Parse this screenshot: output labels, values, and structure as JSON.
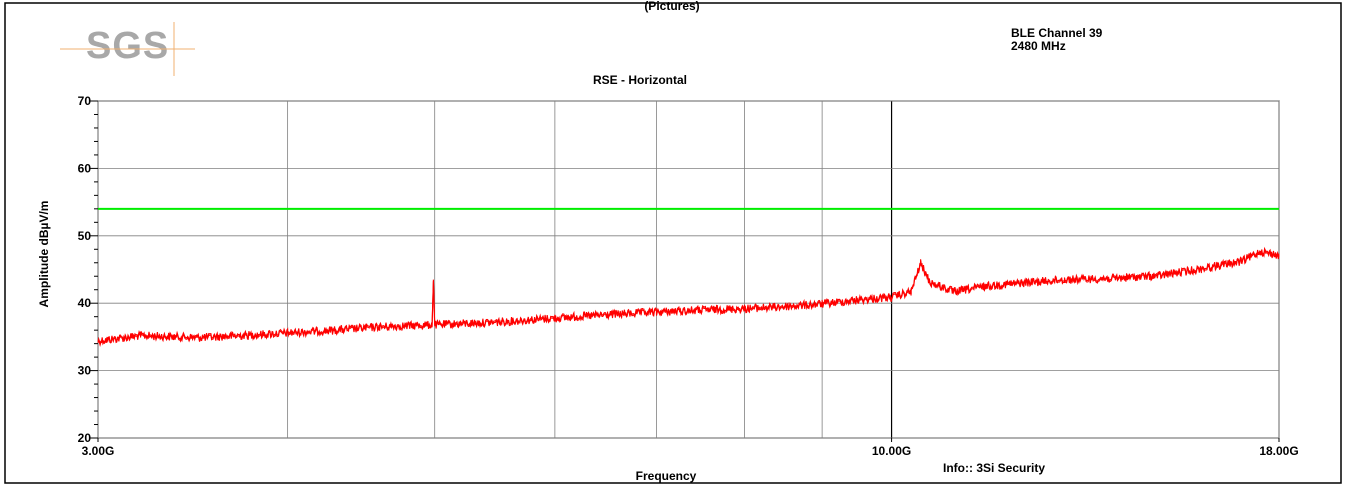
{
  "logo": {
    "text": "SGS"
  },
  "header": {
    "top_text": "(Pictures)",
    "channel": "BLE Channel 39",
    "frequency": "2480 MHz"
  },
  "footer": {
    "info": "Info:: 3Si Security"
  },
  "colors": {
    "trace": "#ff0000",
    "limit": "#00ee00",
    "grid": "#808080",
    "frame": "#000000",
    "logo": "#a8a8a8",
    "logo_line": "#f0b070"
  },
  "chart_data": {
    "type": "line",
    "title": "RSE - Horizontal",
    "xlabel": "Frequency",
    "ylabel": "Amplitude dBµV/m",
    "x_scale": "log",
    "xlim": [
      3.0,
      18.0
    ],
    "ylim": [
      20,
      70
    ],
    "x_unit": "GHz",
    "x_ticks": [
      {
        "value": 3.0,
        "label": "3.00G"
      },
      {
        "value": 10.0,
        "label": "10.00G"
      },
      {
        "value": 18.0,
        "label": "18.00G"
      }
    ],
    "x_gridlines": [
      3,
      4,
      5,
      6,
      7,
      8,
      9,
      10,
      18
    ],
    "y_ticks": [
      20,
      30,
      40,
      50,
      60,
      70
    ],
    "grid": true,
    "series": [
      {
        "name": "",
        "color": "#00ee00",
        "x": [
          3.0,
          18.0
        ],
        "values": [
          54,
          54
        ]
      },
      {
        "name": "",
        "color": "#ff0000",
        "x": [
          3.0,
          3.2,
          3.5,
          3.8,
          4.0,
          4.3,
          4.6,
          4.98,
          4.99,
          5.0,
          5.5,
          6.0,
          6.5,
          7.0,
          7.5,
          8.0,
          8.5,
          9.0,
          9.5,
          10.0,
          10.3,
          10.45,
          10.6,
          11.0,
          11.5,
          12.0,
          13.0,
          14.0,
          15.0,
          16.0,
          16.5,
          17.0,
          17.5,
          18.0
        ],
        "values": [
          34.5,
          35.3,
          35.0,
          35.4,
          35.7,
          36.1,
          36.6,
          36.9,
          43.5,
          36.9,
          37.3,
          37.9,
          38.4,
          38.8,
          39.1,
          39.3,
          39.6,
          40.0,
          40.6,
          41.0,
          41.8,
          46.0,
          43.2,
          41.8,
          42.6,
          43.0,
          43.6,
          43.8,
          44.2,
          45.2,
          45.8,
          46.3,
          47.8,
          47.2
        ]
      }
    ]
  }
}
